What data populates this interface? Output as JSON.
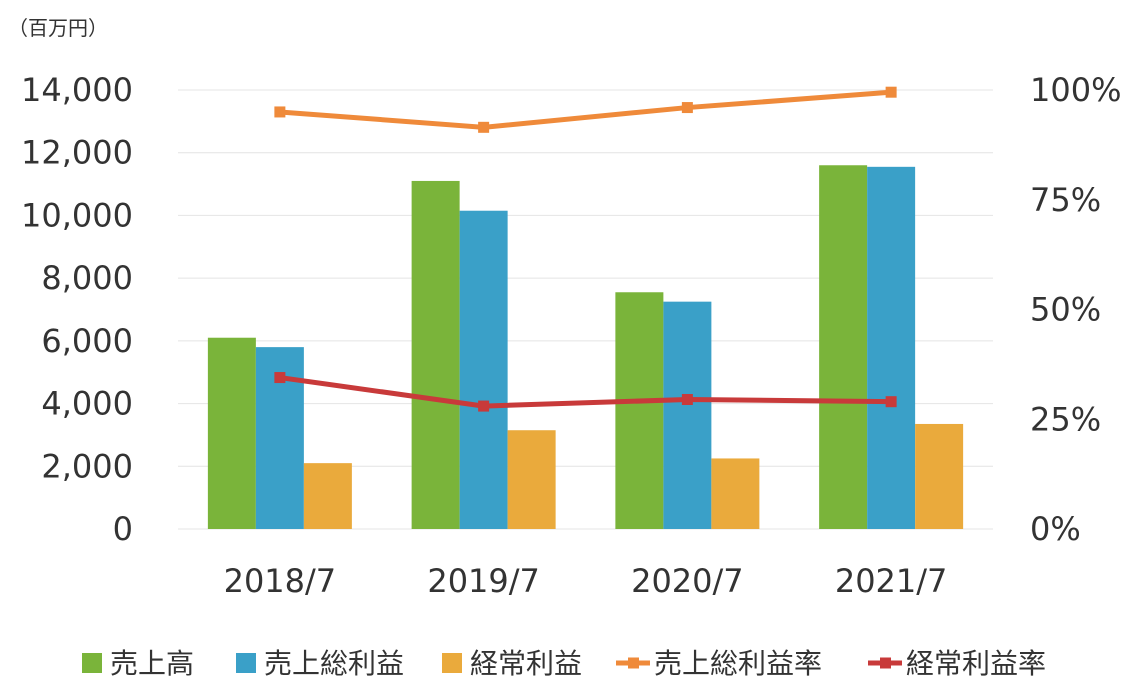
{
  "chart_data": {
    "type": "bar",
    "unit_label": "（百万円）",
    "categories": [
      "2018/7",
      "2019/7",
      "2020/7",
      "2021/7"
    ],
    "series": [
      {
        "name": "売上高",
        "type": "bar",
        "axis": "left",
        "values": [
          6100,
          11100,
          7550,
          11600
        ]
      },
      {
        "name": "売上総利益",
        "type": "bar",
        "axis": "left",
        "values": [
          5800,
          10150,
          7250,
          11550
        ]
      },
      {
        "name": "経常利益",
        "type": "bar",
        "axis": "left",
        "values": [
          2100,
          3150,
          2250,
          3350
        ]
      },
      {
        "name": "売上総利益率",
        "type": "line",
        "axis": "right",
        "values": [
          95,
          91.5,
          96,
          99.5
        ]
      },
      {
        "name": "経常利益率",
        "type": "line",
        "axis": "right",
        "values": [
          34.5,
          28,
          29.5,
          29
        ]
      }
    ],
    "ylim": [
      0,
      14000
    ],
    "yticks": [
      0,
      2000,
      4000,
      6000,
      8000,
      10000,
      12000,
      14000
    ],
    "ytick_labels": [
      "0",
      "2,000",
      "4,000",
      "6,000",
      "8,000",
      "10,000",
      "12,000",
      "14,000"
    ],
    "y2lim": [
      0,
      100
    ],
    "y2ticks": [
      0,
      25,
      50,
      75,
      100
    ],
    "y2tick_labels": [
      "0%",
      "25%",
      "50%",
      "75%",
      "100%"
    ],
    "grid": true,
    "legend": "bottom",
    "colors": [
      "#7ab43a",
      "#3aa0c8",
      "#eaaa3c",
      "#ef8a3a",
      "#c83a3a"
    ]
  }
}
